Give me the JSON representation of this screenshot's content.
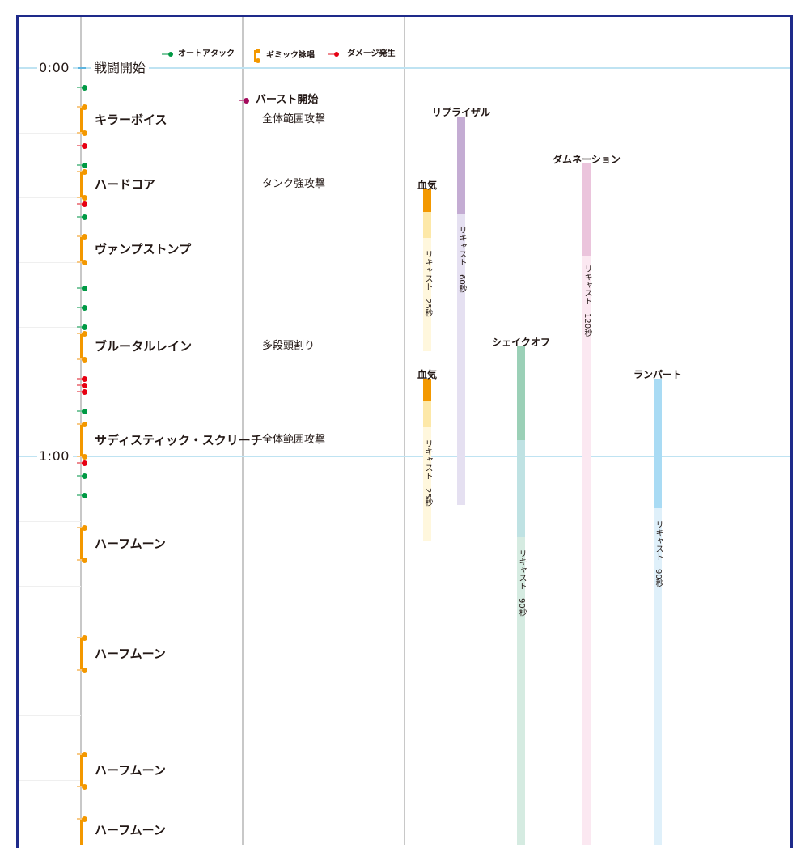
{
  "timeline": {
    "seconds_per_grid": 10,
    "minute_marks": [
      {
        "seconds": 0,
        "label": "0:00"
      },
      {
        "seconds": 60,
        "label": "1:00"
      }
    ],
    "battle_start_label": "戦闘開始"
  },
  "legend": {
    "auto_attack": "オートアタック",
    "gimmick_cast": "ギミック詠唱",
    "damage": "ダメージ発生"
  },
  "colors": {
    "frame": "#1e2a8a",
    "auto_attack": "#009944",
    "damage": "#e60012",
    "cast": "#f39800",
    "burst": "#a40b5d",
    "minute_line": "#bfe3f2"
  },
  "auto_attacks": [
    3,
    15,
    23,
    34,
    37,
    40,
    53,
    63,
    66
  ],
  "damage_events": [
    12,
    21,
    48,
    49,
    50,
    61
  ],
  "casts": [
    {
      "name": "キラーボイス",
      "start": 6,
      "end": 10,
      "note": "全体範囲攻撃"
    },
    {
      "name": "ハードコア",
      "start": 16,
      "end": 20,
      "note": "タンク強攻撃"
    },
    {
      "name": "ヴァンプストンプ",
      "start": 26,
      "end": 30,
      "note": ""
    },
    {
      "name": "ブルータルレイン",
      "start": 41,
      "end": 45,
      "note": "多段頭割り"
    },
    {
      "name": "サディスティック・スクリーチ",
      "start": 55,
      "end": 60,
      "note": "全体範囲攻撃"
    },
    {
      "name": "ハーフムーン",
      "start": 71,
      "end": 76,
      "note": ""
    },
    {
      "name": "ハーフムーン",
      "start": 88,
      "end": 93,
      "note": ""
    },
    {
      "name": "ハーフムーン",
      "start": 106,
      "end": 111,
      "note": ""
    },
    {
      "name": "ハーフムーン",
      "start": 116,
      "end": 121,
      "note": ""
    }
  ],
  "burst": {
    "label": "バースト開始",
    "seconds": 5
  },
  "cooldowns": [
    {
      "name": "血気",
      "start": 18.75,
      "active": 3.5,
      "secondary": 4,
      "recast": 25,
      "recast_label": "リキャスト　25秒",
      "active_color": "#f39800",
      "secondary_color": "#fde8a8",
      "recast_color": "#fff7dd"
    },
    {
      "name": "血気",
      "start": 48,
      "active": 3.5,
      "secondary": 4,
      "recast": 25,
      "recast_label": "リキャスト　25秒",
      "active_color": "#f39800",
      "secondary_color": "#fde8a8",
      "recast_color": "#fff7dd"
    },
    {
      "name": "リプライザル",
      "start": 7.5,
      "active": 15,
      "secondary": 0,
      "recast": 60,
      "recast_label": "リキャスト　60秒",
      "active_color": "#c4acd3",
      "secondary_color": "#e5e0f1",
      "recast_color": "#e5e0f1"
    },
    {
      "name": "ダムネーション",
      "start": 14.75,
      "active": 14.25,
      "secondary": 0,
      "recast": 120,
      "recast_label": "リキャスト　120秒",
      "active_color": "#ebc4dc",
      "secondary_color": "#fbe8f1",
      "recast_color": "#fbe8f1"
    },
    {
      "name": "シェイクオフ",
      "start": 43,
      "active": 14.5,
      "secondary": 15,
      "recast": 90,
      "recast_label": "リキャスト　90秒",
      "active_color": "#9bd0b7",
      "secondary_color": "#bfe2e3",
      "recast_color": "#d5ebe1"
    },
    {
      "name": "ランパート",
      "start": 48,
      "active": 20,
      "secondary": 0,
      "recast": 90,
      "recast_label": "リキャスト　90秒",
      "active_color": "#a9dbf4",
      "secondary_color": "#dff0fa",
      "recast_color": "#dff0fa"
    }
  ]
}
